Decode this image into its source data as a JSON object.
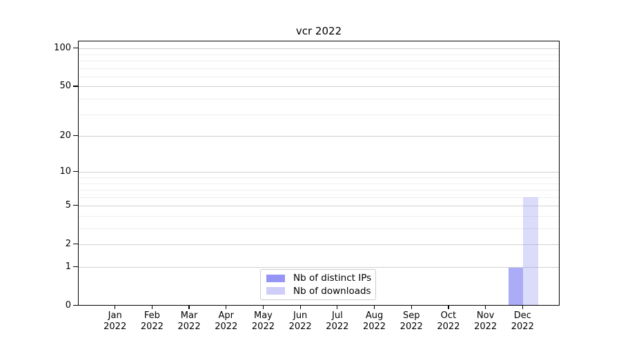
{
  "chart_data": {
    "type": "bar",
    "title": "vcr 2022",
    "categories": [
      "Jan 2022",
      "Feb 2022",
      "Mar 2022",
      "Apr 2022",
      "May 2022",
      "Jun 2022",
      "Jul 2022",
      "Aug 2022",
      "Sep 2022",
      "Oct 2022",
      "Nov 2022",
      "Dec 2022"
    ],
    "series": [
      {
        "name": "Nb of distinct IPs",
        "color": "#4f4ff0",
        "fill_opacity": 0.48,
        "values": [
          0,
          0,
          0,
          0,
          0,
          0,
          0,
          0,
          0,
          0,
          0,
          1
        ]
      },
      {
        "name": "Nb of downloads",
        "color": "#8f8ff1",
        "fill_opacity": 0.32,
        "values": [
          0,
          0,
          0,
          0,
          0,
          0,
          0,
          0,
          0,
          0,
          0,
          6
        ]
      }
    ],
    "xlabel": "",
    "ylabel": "",
    "yscale": "log1p",
    "ylim": [
      0,
      115
    ],
    "y_major_ticks": [
      0,
      1,
      2,
      5,
      10,
      20,
      50,
      100
    ],
    "y_minor_gridlines": [
      3,
      4,
      6,
      7,
      8,
      9,
      30,
      40,
      60,
      70,
      80,
      90
    ],
    "grid": "horizontal",
    "legend_position": "lower center",
    "colors": {
      "axis": "#000000",
      "grid_major": "#cfcfcf",
      "grid_minor": "#ededed",
      "background": "#ffffff"
    }
  }
}
